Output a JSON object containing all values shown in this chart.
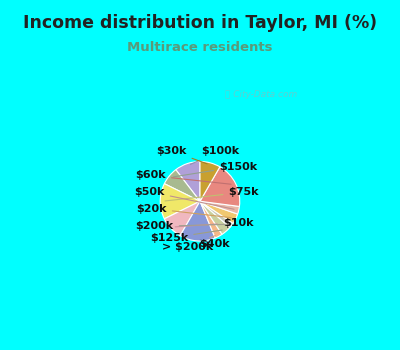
{
  "title": "Income distribution in Taylor, MI (%)",
  "subtitle": "Multirace residents",
  "watermark": "City-Data.com",
  "bg_cyan": "#00FFFF",
  "bg_inner": "#e0f0e8",
  "title_color": "#222222",
  "subtitle_color": "#5a9a7a",
  "labels": [
    "$100k",
    "$150k",
    "$75k",
    "$10k",
    "$40k",
    "> $200k",
    "$125k",
    "$200k",
    "$20k",
    "$50k",
    "$60k",
    "$30k"
  ],
  "values": [
    10,
    7,
    14,
    9,
    14,
    3,
    4,
    2,
    4,
    3,
    18,
    8
  ],
  "colors": [
    "#b0a0d8",
    "#a8ba90",
    "#f0e868",
    "#f0b8c0",
    "#8898d8",
    "#f5b888",
    "#c8d0a0",
    "#c8c8b8",
    "#f0c870",
    "#e8b8a8",
    "#e88880",
    "#c8a030"
  ],
  "title_fontsize": 12.5,
  "subtitle_fontsize": 9.5,
  "label_fontsize": 8
}
